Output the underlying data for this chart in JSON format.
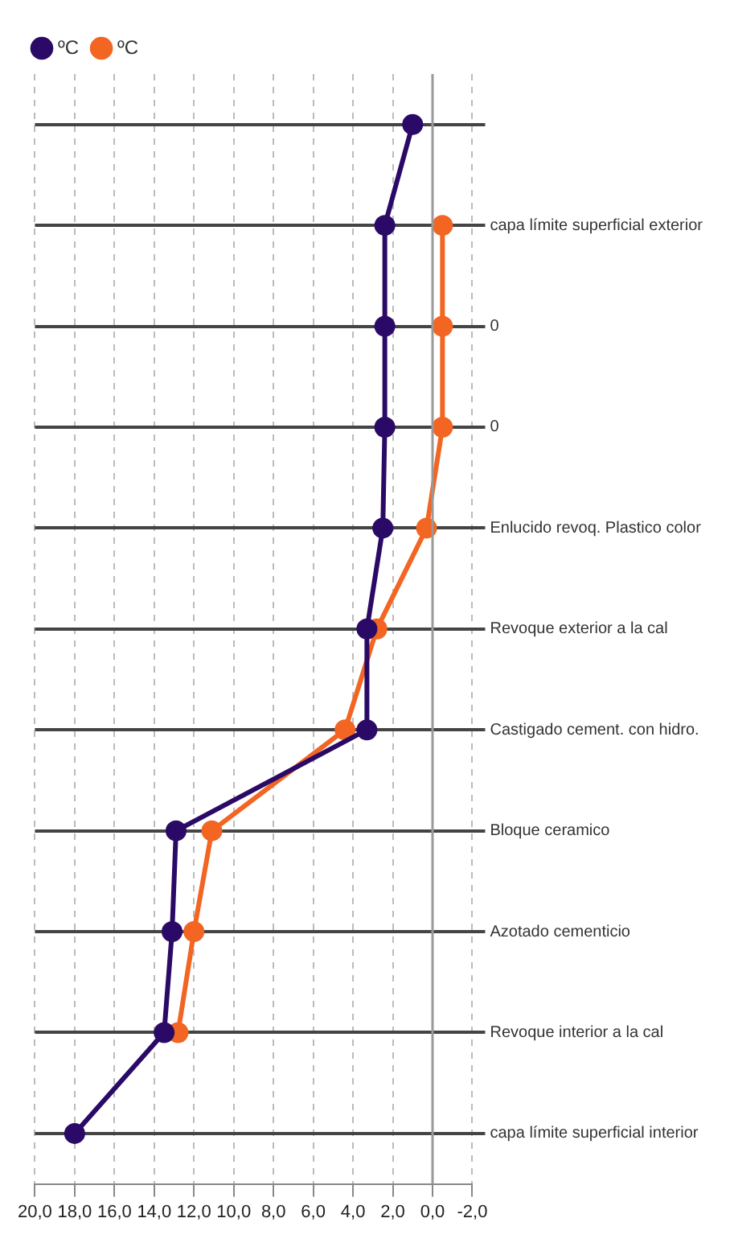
{
  "chart_data": {
    "type": "line",
    "orientation": "horizontal",
    "categories": [
      null,
      "capa límite superficial exterior",
      "0",
      "0",
      "Enlucido revoq. Plastico color",
      "Revoque exterior a la cal",
      "Castigado cement. con hidro.",
      "Bloque ceramico",
      "Azotado cementicio",
      "Revoque interior a la cal",
      "capa límite superficial interior"
    ],
    "series": [
      {
        "name": "ºC",
        "color": "#2a0a66",
        "values": [
          1.0,
          2.4,
          2.4,
          2.4,
          2.5,
          3.3,
          3.3,
          12.9,
          13.1,
          13.5,
          18.0
        ]
      },
      {
        "name": "ºC",
        "color": "#f26522",
        "values": [
          null,
          -0.5,
          -0.5,
          -0.5,
          0.3,
          2.8,
          4.4,
          11.1,
          12.0,
          12.8,
          null
        ]
      }
    ],
    "xlim": [
      20,
      -2
    ],
    "xticks": [
      {
        "value": 20,
        "label": "20,0"
      },
      {
        "value": 18,
        "label": "18,0"
      },
      {
        "value": 16,
        "label": "16,0"
      },
      {
        "value": 14,
        "label": "14,0"
      },
      {
        "value": 12,
        "label": "12,0"
      },
      {
        "value": 10,
        "label": "10,0"
      },
      {
        "value": 8,
        "label": "8,0"
      },
      {
        "value": 6,
        "label": "6,0"
      },
      {
        "value": 4,
        "label": "4,0"
      },
      {
        "value": 2,
        "label": "2,0"
      },
      {
        "value": 0,
        "label": "0,0"
      },
      {
        "value": -2,
        "label": "-2,0"
      }
    ],
    "ref_lines": [
      {
        "axis": "x",
        "value": 0,
        "color": "#999999",
        "line_style": "solid"
      }
    ],
    "grid": true,
    "legend": "top left",
    "marker": "circle",
    "line_style": "solid"
  }
}
